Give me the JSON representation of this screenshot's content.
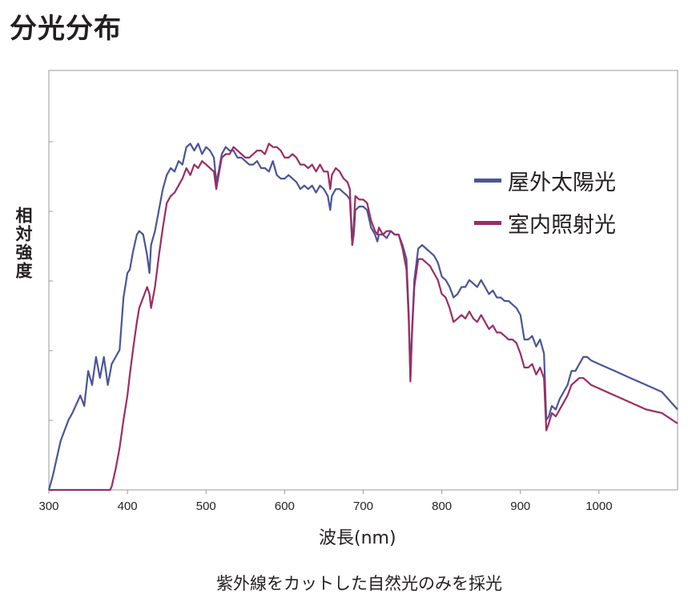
{
  "title": "分光分布",
  "chart_data": {
    "type": "line",
    "title": "",
    "xlabel": "波長(nm)",
    "ylabel": "相対強度",
    "xlim": [
      300,
      1100
    ],
    "ylim": [
      0,
      100
    ],
    "xticks": [
      300,
      400,
      500,
      600,
      700,
      800,
      900,
      1000
    ],
    "grid": false,
    "legend_position": "top-right",
    "series": [
      {
        "name": "屋外太陽光",
        "color": "#4a5597",
        "x": [
          300,
          305,
          315,
          325,
          330,
          340,
          345,
          350,
          355,
          360,
          365,
          370,
          375,
          380,
          385,
          390,
          395,
          400,
          403,
          407,
          412,
          415,
          420,
          425,
          428,
          430,
          435,
          440,
          445,
          450,
          455,
          460,
          465,
          470,
          475,
          480,
          485,
          490,
          495,
          500,
          505,
          510,
          513,
          516,
          520,
          525,
          530,
          535,
          540,
          545,
          550,
          555,
          560,
          565,
          570,
          575,
          580,
          585,
          590,
          595,
          600,
          605,
          610,
          615,
          620,
          625,
          630,
          635,
          640,
          645,
          650,
          655,
          658,
          660,
          665,
          670,
          675,
          680,
          683,
          686,
          688,
          690,
          695,
          700,
          705,
          710,
          715,
          718,
          720,
          725,
          730,
          735,
          740,
          745,
          750,
          755,
          758,
          760,
          762,
          765,
          770,
          775,
          780,
          785,
          790,
          795,
          800,
          805,
          810,
          815,
          820,
          825,
          830,
          835,
          840,
          845,
          850,
          855,
          860,
          865,
          870,
          875,
          880,
          885,
          890,
          895,
          900,
          905,
          910,
          915,
          920,
          925,
          930,
          933,
          936,
          940,
          945,
          950,
          955,
          960,
          965,
          970,
          975,
          980,
          985,
          990,
          1000,
          1020,
          1040,
          1060,
          1080,
          1100
        ],
        "y": [
          0,
          4,
          14,
          20,
          22,
          27,
          24,
          34,
          30,
          38,
          32,
          38,
          30,
          36,
          38,
          40,
          55,
          62,
          63,
          68,
          73,
          74,
          73,
          67,
          62,
          70,
          74,
          80,
          86,
          90,
          92,
          91,
          94,
          93,
          98,
          99,
          97,
          99,
          96,
          98,
          97,
          95,
          88,
          91,
          96,
          98,
          97,
          97,
          95,
          95,
          94,
          93,
          93,
          94,
          92,
          92,
          91,
          94,
          90,
          89,
          89,
          90,
          89,
          88,
          86,
          87,
          86,
          87,
          85,
          87,
          86,
          84,
          80,
          84,
          86,
          86,
          85,
          84,
          83,
          70,
          73,
          80,
          81,
          81,
          80,
          75,
          73,
          71,
          73,
          73,
          72,
          74,
          73,
          73,
          70,
          66,
          50,
          32,
          45,
          60,
          69,
          70,
          69,
          68,
          67,
          65,
          61,
          60,
          58,
          55,
          56,
          58,
          58,
          60,
          59,
          58,
          60,
          58,
          56,
          57,
          55,
          55,
          54,
          54,
          53,
          52,
          50,
          43,
          43,
          44,
          41,
          43,
          39,
          20,
          21,
          24,
          23,
          26,
          28,
          30,
          34,
          34,
          36,
          38,
          38,
          37,
          36,
          34,
          32,
          30,
          28,
          23
        ]
      },
      {
        "name": "室内照射光",
        "color": "#9b2d63",
        "x": [
          300,
          310,
          320,
          330,
          340,
          350,
          360,
          365,
          370,
          375,
          378,
          380,
          385,
          390,
          395,
          400,
          403,
          407,
          412,
          415,
          420,
          425,
          428,
          430,
          435,
          440,
          445,
          450,
          455,
          460,
          465,
          470,
          475,
          480,
          485,
          490,
          495,
          500,
          505,
          510,
          513,
          516,
          520,
          525,
          530,
          535,
          540,
          545,
          550,
          555,
          560,
          565,
          570,
          575,
          580,
          585,
          590,
          595,
          600,
          605,
          610,
          615,
          620,
          625,
          630,
          635,
          640,
          645,
          650,
          655,
          658,
          660,
          665,
          670,
          675,
          680,
          683,
          686,
          688,
          690,
          695,
          700,
          705,
          710,
          715,
          718,
          720,
          725,
          730,
          735,
          740,
          745,
          750,
          755,
          758,
          760,
          762,
          765,
          770,
          775,
          780,
          785,
          790,
          795,
          800,
          805,
          810,
          815,
          820,
          825,
          830,
          835,
          840,
          845,
          850,
          855,
          860,
          865,
          870,
          875,
          880,
          885,
          890,
          895,
          900,
          905,
          910,
          915,
          920,
          925,
          930,
          933,
          936,
          940,
          945,
          950,
          955,
          960,
          965,
          970,
          975,
          980,
          985,
          990,
          1000,
          1020,
          1040,
          1060,
          1080,
          1100
        ],
        "y": [
          0,
          0,
          0,
          0,
          0,
          0,
          0,
          0,
          0,
          0,
          0,
          1,
          6,
          12,
          20,
          27,
          33,
          40,
          48,
          52,
          55,
          58,
          56,
          52,
          58,
          67,
          75,
          82,
          84,
          85,
          87,
          89,
          92,
          90,
          93,
          92,
          94,
          93,
          92,
          91,
          86,
          90,
          95,
          96,
          96,
          98,
          97,
          96,
          95,
          95,
          96,
          97,
          97,
          96,
          99,
          98,
          98,
          97,
          95,
          95,
          96,
          95,
          93,
          93,
          92,
          93,
          91,
          93,
          91,
          91,
          86,
          90,
          92,
          91,
          89,
          88,
          86,
          70,
          76,
          84,
          83,
          83,
          82,
          77,
          74,
          73,
          75,
          73,
          74,
          74,
          73,
          73,
          69,
          63,
          48,
          31,
          44,
          58,
          66,
          66,
          65,
          64,
          62,
          60,
          56,
          55,
          52,
          48,
          49,
          50,
          49,
          51,
          49,
          48,
          50,
          48,
          46,
          47,
          45,
          45,
          44,
          43,
          43,
          42,
          39,
          35,
          35,
          36,
          33,
          35,
          32,
          17,
          19,
          22,
          21,
          23,
          25,
          27,
          30,
          31,
          32,
          32,
          31,
          30,
          29,
          27,
          25,
          23,
          22,
          19
        ]
      }
    ]
  },
  "caption": "紫外線をカットした自然光のみを採光"
}
